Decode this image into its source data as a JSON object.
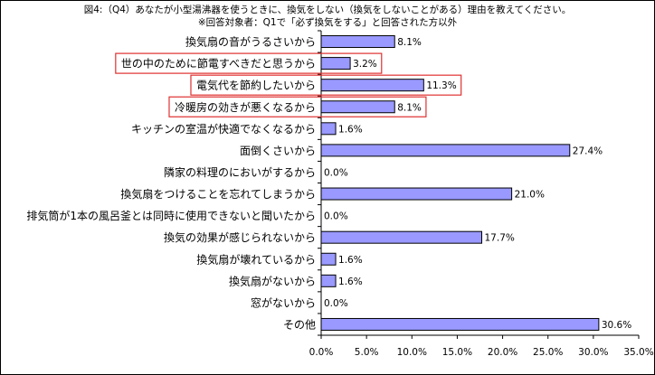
{
  "chart_data": {
    "type": "bar",
    "orientation": "horizontal",
    "title": "図4:（Q4）あなたが小型湯沸器を使うときに、換気をしない（換気をしないことがある）理由を教えてください。",
    "subtitle": "※回答対象者：Q1で「必ず換気をする」と回答された方以外",
    "categories": [
      "換気扇の音がうるさいから",
      "世の中のために節電すべきだと思うから",
      "電気代を節約したいから",
      "冷暖房の効きが悪くなるから",
      "キッチンの室温が快適でなくなるから",
      "面倒くさいから",
      "隣家の料理のにおいがするから",
      "換気扇をつけることを忘れてしまうから",
      "排気筒が1本の風呂釜とは同時に使用できないと聞いたから",
      "換気の効果が感じられないから",
      "換気扇が壊れているから",
      "換気扇がないから",
      "窓がないから",
      "その他"
    ],
    "values": [
      8.1,
      3.2,
      11.3,
      8.1,
      1.6,
      27.4,
      0.0,
      21.0,
      0.0,
      17.7,
      1.6,
      1.6,
      0.0,
      30.6
    ],
    "value_labels": [
      "8.1%",
      "3.2%",
      "11.3%",
      "8.1%",
      "1.6%",
      "27.4%",
      "0.0%",
      "21.0%",
      "0.0%",
      "17.7%",
      "1.6%",
      "1.6%",
      "0.0%",
      "30.6%"
    ],
    "highlighted": [
      false,
      true,
      true,
      true,
      false,
      false,
      false,
      false,
      false,
      false,
      false,
      false,
      false,
      false
    ],
    "xlim": [
      0,
      35
    ],
    "xticks": [
      "0.0%",
      "5.0%",
      "10.0%",
      "15.0%",
      "20.0%",
      "25.0%",
      "30.0%",
      "35.0%"
    ],
    "xlabel": "",
    "ylabel": "",
    "grid": false,
    "legend": "none",
    "colors": {
      "bar_fill": "#9999ff",
      "bar_stroke": "#000000",
      "highlight_box": "#e03030"
    }
  }
}
